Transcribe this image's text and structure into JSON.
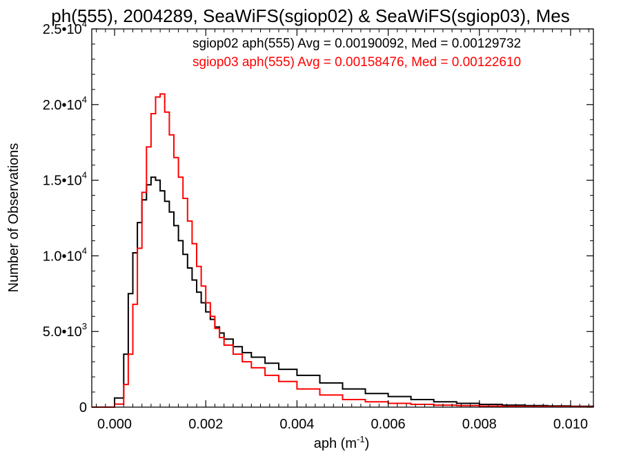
{
  "chart_data": {
    "type": "line",
    "title": "ph(555), 2004289, SeaWiFS(sgiop02) & SeaWiFS(sgiop03), Mes",
    "xlabel": "aph (m",
    "xlabel_sup": "-1",
    "xlabel_end": ")",
    "ylabel": "Number of Observations",
    "xlim": [
      -0.0005,
      0.0105
    ],
    "ylim": [
      0,
      25000
    ],
    "grid": false,
    "step": true,
    "xticks": [
      {
        "value": 0.0,
        "label": "0.000"
      },
      {
        "value": 0.002,
        "label": "0.002"
      },
      {
        "value": 0.004,
        "label": "0.004"
      },
      {
        "value": 0.006,
        "label": "0.006"
      },
      {
        "value": 0.008,
        "label": "0.008"
      },
      {
        "value": 0.01,
        "label": "0.010"
      }
    ],
    "yticks": [
      {
        "value": 0,
        "mant": "0",
        "exp": ""
      },
      {
        "value": 5000,
        "mant": "5.0•10",
        "exp": "3"
      },
      {
        "value": 10000,
        "mant": "1.0•10",
        "exp": "4"
      },
      {
        "value": 15000,
        "mant": "1.5•10",
        "exp": "4"
      },
      {
        "value": 20000,
        "mant": "2.0•10",
        "exp": "4"
      },
      {
        "value": 25000,
        "mant": "2.5•10",
        "exp": "4"
      }
    ],
    "series": [
      {
        "name": "sgiop02 aph(555) Avg = 0.00190092, Med = 0.00129732",
        "color": "#000000",
        "x": [
          -0.0005,
          -0.0001,
          0.0,
          0.0002,
          0.0003,
          0.0004,
          0.0005,
          0.0006,
          0.0007,
          0.0008,
          0.0009,
          0.001,
          0.0011,
          0.0012,
          0.0013,
          0.0014,
          0.0015,
          0.0016,
          0.0017,
          0.0018,
          0.0019,
          0.002,
          0.0021,
          0.0022,
          0.0023,
          0.0024,
          0.0026,
          0.0028,
          0.003,
          0.0033,
          0.0036,
          0.004,
          0.0045,
          0.005,
          0.0055,
          0.006,
          0.0065,
          0.007,
          0.0075,
          0.008,
          0.0085,
          0.009,
          0.0095,
          0.01,
          0.0105
        ],
        "y": [
          0,
          0,
          600,
          3500,
          7500,
          10200,
          12200,
          13700,
          14700,
          15200,
          15000,
          14300,
          13600,
          12900,
          12000,
          11000,
          10100,
          9200,
          8400,
          7600,
          6900,
          6300,
          5800,
          5300,
          4900,
          4500,
          4000,
          3600,
          3300,
          2900,
          2500,
          2100,
          1600,
          1200,
          900,
          700,
          500,
          350,
          250,
          180,
          130,
          100,
          80,
          60,
          50
        ]
      },
      {
        "name": "sgiop03 aph(555) Avg = 0.00158476, Med = 0.00122610",
        "color": "#ff0000",
        "x": [
          -0.0005,
          0.0,
          0.0002,
          0.0003,
          0.0004,
          0.0005,
          0.0006,
          0.0007,
          0.0008,
          0.0009,
          0.001,
          0.0011,
          0.0012,
          0.0013,
          0.0014,
          0.0015,
          0.0016,
          0.0017,
          0.0018,
          0.0019,
          0.002,
          0.0021,
          0.0022,
          0.0023,
          0.0024,
          0.0026,
          0.0028,
          0.003,
          0.0033,
          0.0036,
          0.004,
          0.0045,
          0.005,
          0.0055,
          0.006,
          0.0065,
          0.007,
          0.0075,
          0.008,
          0.0085,
          0.009,
          0.0095,
          0.01,
          0.0105
        ],
        "y": [
          0,
          200,
          1500,
          3500,
          6800,
          10500,
          14200,
          17200,
          19400,
          20500,
          20700,
          19500,
          18000,
          16500,
          15200,
          13800,
          12300,
          10800,
          9300,
          8000,
          6900,
          6000,
          5200,
          4600,
          4100,
          3500,
          3000,
          2600,
          2100,
          1700,
          1200,
          800,
          500,
          350,
          250,
          180,
          130,
          100,
          70,
          50,
          40,
          30,
          25,
          20
        ]
      }
    ]
  }
}
